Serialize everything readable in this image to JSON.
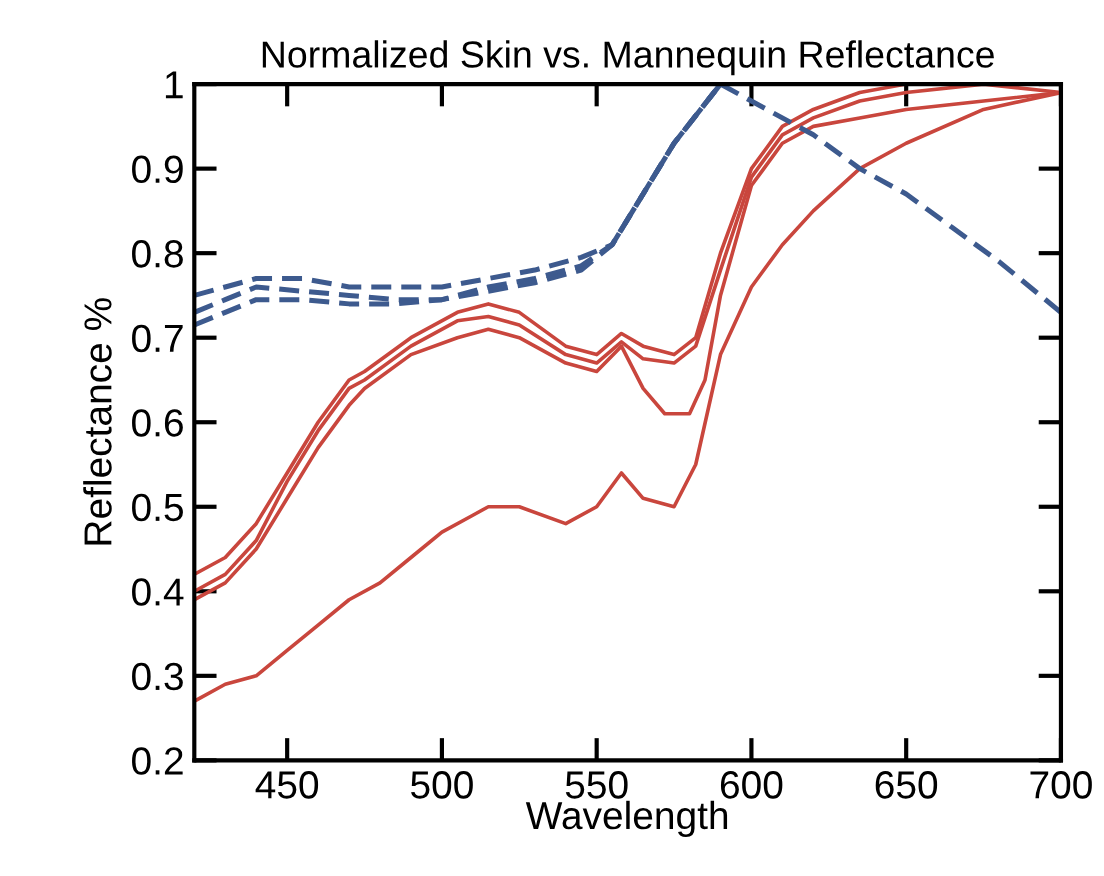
{
  "chart_data": {
    "type": "line",
    "title": "Normalized Skin vs. Mannequin Reflectance",
    "xlabel": "Wavelength",
    "ylabel": "Reflectance %",
    "xlim": [
      420,
      700
    ],
    "ylim": [
      0.2,
      1
    ],
    "xticks": [
      450,
      500,
      550,
      600,
      650,
      700
    ],
    "yticks": [
      0.2,
      0.3,
      0.4,
      0.5,
      0.6,
      0.7,
      0.8,
      0.9,
      1
    ],
    "grid": false,
    "marker": "none",
    "series": [
      {
        "color": "#c9463d",
        "line_style": "solid",
        "x": [
          420,
          430,
          440,
          450,
          460,
          470,
          475,
          490,
          505,
          515,
          525,
          540,
          550,
          558,
          565,
          575,
          582,
          590,
          600,
          610,
          620,
          635,
          650,
          675,
          700
        ],
        "values": [
          0.42,
          0.44,
          0.48,
          0.54,
          0.6,
          0.65,
          0.66,
          0.7,
          0.73,
          0.74,
          0.73,
          0.69,
          0.68,
          0.705,
          0.69,
          0.68,
          0.7,
          0.8,
          0.9,
          0.95,
          0.97,
          0.99,
          1.0,
          1.0,
          1.0
        ]
      },
      {
        "color": "#c9463d",
        "line_style": "solid",
        "x": [
          420,
          430,
          440,
          450,
          460,
          470,
          475,
          490,
          505,
          515,
          525,
          540,
          550,
          558,
          565,
          575,
          582,
          590,
          600,
          610,
          620,
          635,
          650,
          675,
          700
        ],
        "values": [
          0.4,
          0.42,
          0.46,
          0.53,
          0.59,
          0.64,
          0.65,
          0.69,
          0.72,
          0.725,
          0.715,
          0.68,
          0.67,
          0.695,
          0.675,
          0.67,
          0.69,
          0.78,
          0.89,
          0.94,
          0.96,
          0.98,
          0.99,
          1.0,
          0.99
        ]
      },
      {
        "color": "#c9463d",
        "line_style": "solid",
        "x": [
          420,
          430,
          440,
          450,
          460,
          470,
          475,
          490,
          505,
          515,
          525,
          540,
          550,
          558,
          565,
          572,
          580,
          585,
          590,
          600,
          610,
          620,
          635,
          650,
          675,
          700
        ],
        "values": [
          0.39,
          0.41,
          0.45,
          0.51,
          0.57,
          0.62,
          0.64,
          0.68,
          0.7,
          0.71,
          0.7,
          0.67,
          0.66,
          0.69,
          0.64,
          0.61,
          0.61,
          0.65,
          0.75,
          0.88,
          0.93,
          0.95,
          0.96,
          0.97,
          0.98,
          0.99
        ]
      },
      {
        "color": "#c9463d",
        "line_style": "solid",
        "x": [
          420,
          430,
          440,
          450,
          460,
          470,
          480,
          490,
          500,
          510,
          515,
          525,
          540,
          550,
          558,
          565,
          575,
          582,
          590,
          600,
          610,
          620,
          635,
          650,
          675,
          700
        ],
        "values": [
          0.27,
          0.29,
          0.3,
          0.33,
          0.36,
          0.39,
          0.41,
          0.44,
          0.47,
          0.49,
          0.5,
          0.5,
          0.48,
          0.5,
          0.54,
          0.51,
          0.5,
          0.55,
          0.68,
          0.76,
          0.81,
          0.85,
          0.9,
          0.93,
          0.97,
          0.99
        ]
      },
      {
        "color": "#3d5a8e",
        "line_style": "dashed",
        "x": [
          420,
          430,
          440,
          455,
          470,
          485,
          500,
          515,
          530,
          545,
          555,
          565,
          575,
          590
        ],
        "values": [
          0.75,
          0.76,
          0.77,
          0.77,
          0.76,
          0.76,
          0.76,
          0.77,
          0.78,
          0.795,
          0.81,
          0.87,
          0.93,
          1.0
        ]
      },
      {
        "color": "#3d5a8e",
        "line_style": "dashed",
        "x": [
          420,
          430,
          440,
          455,
          470,
          485,
          500,
          515,
          530,
          545,
          555,
          565,
          575,
          590
        ],
        "values": [
          0.73,
          0.745,
          0.76,
          0.755,
          0.75,
          0.745,
          0.745,
          0.76,
          0.77,
          0.785,
          0.81,
          0.87,
          0.93,
          1.0
        ]
      },
      {
        "color": "#3d5a8e",
        "line_style": "dashed",
        "x": [
          420,
          430,
          440,
          455,
          470,
          485,
          500,
          515,
          530,
          545,
          555,
          565,
          575,
          590,
          605,
          620,
          635,
          650,
          665,
          680,
          700
        ],
        "values": [
          0.715,
          0.73,
          0.745,
          0.745,
          0.74,
          0.74,
          0.745,
          0.755,
          0.765,
          0.78,
          0.81,
          0.87,
          0.93,
          1.0,
          0.97,
          0.94,
          0.9,
          0.87,
          0.83,
          0.79,
          0.73
        ]
      }
    ]
  }
}
